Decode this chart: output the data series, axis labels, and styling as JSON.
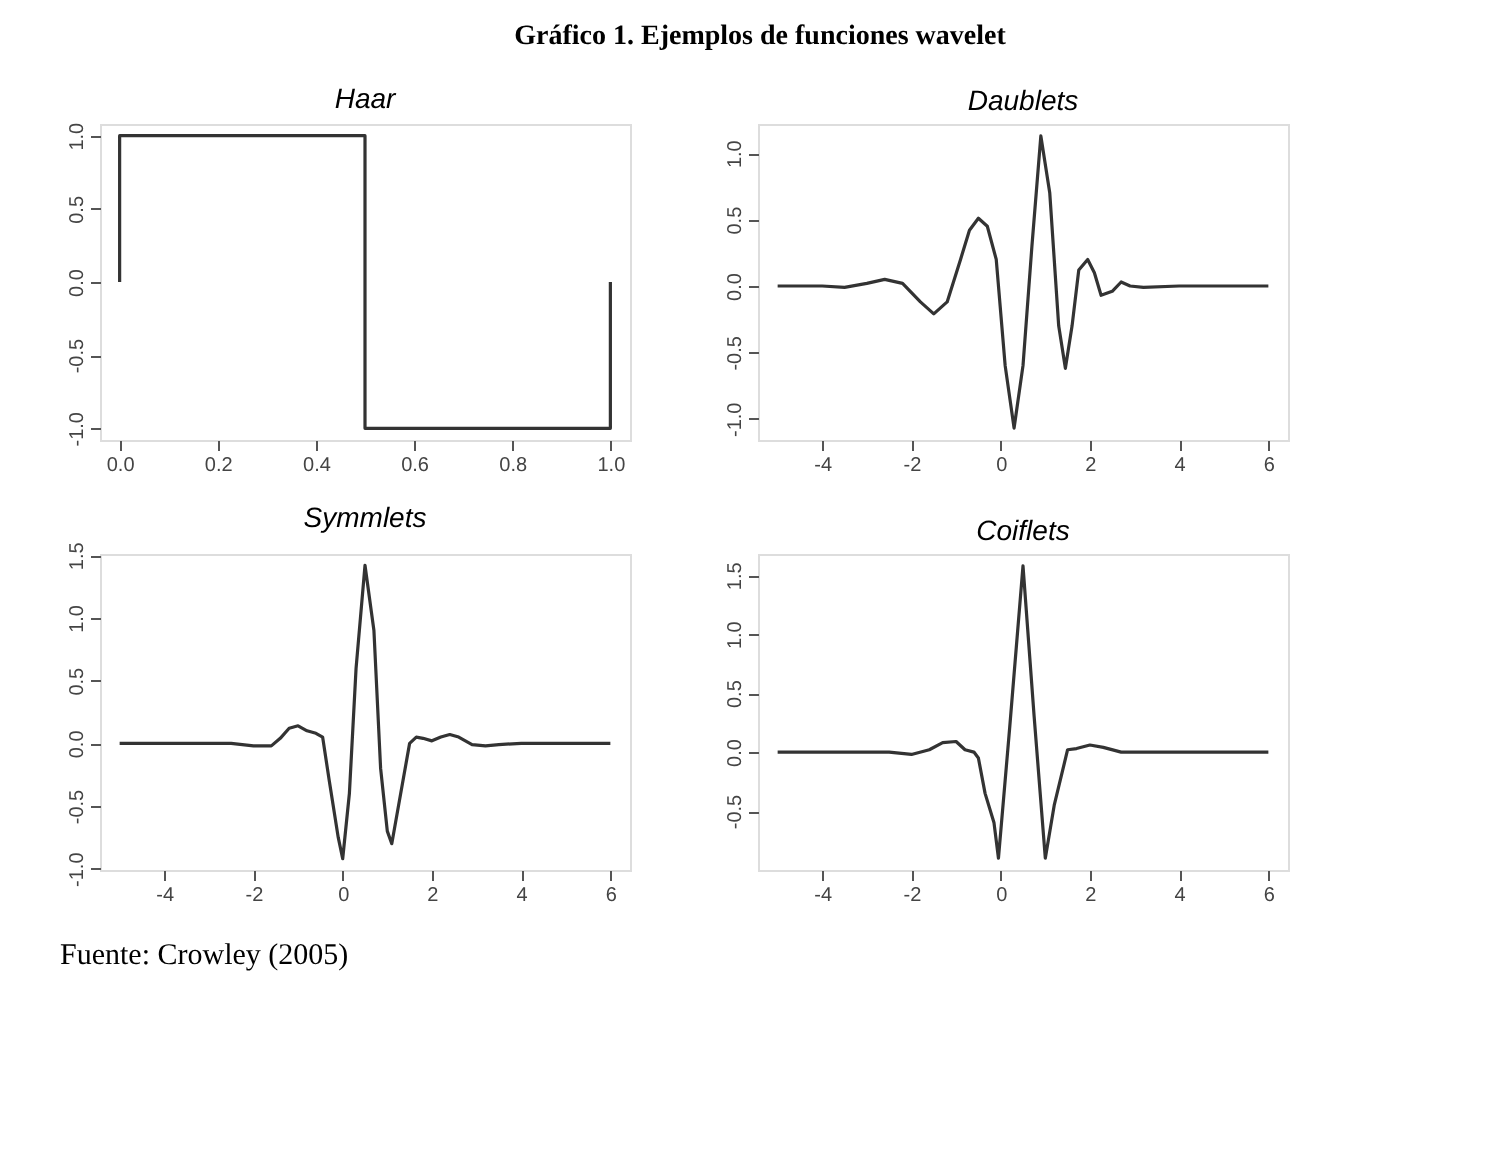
{
  "chart_data": [
    {
      "type": "other",
      "title": "Gráfico 1. Ejemplos de funciones wavelet"
    },
    {
      "type": "line",
      "title": "Haar",
      "x": [
        0,
        0,
        0.5,
        0.5,
        1,
        1
      ],
      "values": [
        0,
        1,
        1,
        -1,
        -1,
        0
      ],
      "color": "#333333",
      "xlim": [
        -0.04,
        1.04
      ],
      "ylim": [
        -1.08,
        1.08
      ],
      "xticks": [
        {
          "value": 0,
          "label": "0.0"
        },
        0.2,
        0.4,
        0.6,
        0.8,
        {
          "value": 1,
          "label": "1.0"
        }
      ],
      "yticks": [
        {
          "value": -1,
          "label": "-1.0"
        },
        -0.5,
        {
          "value": 0,
          "label": "0.0"
        },
        0.5,
        {
          "value": 1,
          "label": "1.0"
        }
      ],
      "grid": false
    },
    {
      "type": "line",
      "title": "Daublets",
      "x": [
        -5,
        -4,
        -3.5,
        -3,
        -2.6,
        -2.2,
        -1.8,
        -1.5,
        -1.2,
        -0.9,
        -0.7,
        -0.5,
        -0.3,
        -0.1,
        0.1,
        0.3,
        0.5,
        0.7,
        0.9,
        1.1,
        1.3,
        1.45,
        1.6,
        1.75,
        1.95,
        2.1,
        2.25,
        2.5,
        2.7,
        2.9,
        3.2,
        4,
        6
      ],
      "values": [
        0,
        0,
        -0.01,
        0.02,
        0.05,
        0.02,
        -0.12,
        -0.21,
        -0.12,
        0.2,
        0.42,
        0.51,
        0.45,
        0.2,
        -0.6,
        -1.07,
        -0.6,
        0.3,
        1.13,
        0.7,
        -0.3,
        -0.62,
        -0.3,
        0.12,
        0.2,
        0.1,
        -0.07,
        -0.04,
        0.03,
        0,
        -0.01,
        0,
        0
      ],
      "color": "#333333",
      "xlim": [
        -5.44,
        6.44
      ],
      "ylim": [
        -1.16,
        1.22
      ],
      "xticks": [
        -4,
        -2,
        0,
        2,
        4,
        6
      ],
      "yticks": [
        {
          "value": -1,
          "label": "-1.0"
        },
        -0.5,
        {
          "value": 0,
          "label": "0.0"
        },
        0.5,
        {
          "value": 1,
          "label": "1.0"
        }
      ],
      "grid": false
    },
    {
      "type": "line",
      "title": "Symmlets",
      "x": [
        -5,
        -3,
        -2.5,
        -2,
        -1.6,
        -1.4,
        -1.2,
        -1.0,
        -0.8,
        -0.6,
        -0.45,
        -0.3,
        -0.1,
        0,
        0.15,
        0.3,
        0.5,
        0.7,
        0.85,
        1.0,
        1.1,
        1.3,
        1.5,
        1.65,
        1.8,
        2.0,
        2.2,
        2.4,
        2.6,
        2.9,
        3.2,
        3.5,
        4,
        6
      ],
      "values": [
        0,
        0,
        0,
        -0.02,
        -0.02,
        0.04,
        0.12,
        0.14,
        0.1,
        0.08,
        0.05,
        -0.3,
        -0.75,
        -0.92,
        -0.4,
        0.6,
        1.42,
        0.9,
        -0.2,
        -0.7,
        -0.8,
        -0.4,
        0,
        0.05,
        0.04,
        0.02,
        0.05,
        0.07,
        0.05,
        -0.01,
        -0.02,
        -0.01,
        0,
        0
      ],
      "color": "#333333",
      "xlim": [
        -5.44,
        6.44
      ],
      "ylim": [
        -1.01,
        1.51
      ],
      "xticks": [
        -4,
        -2,
        0,
        2,
        4,
        6
      ],
      "yticks": [
        {
          "value": -1,
          "label": "-1.0"
        },
        -0.5,
        {
          "value": 0,
          "label": "0.0"
        },
        0.5,
        {
          "value": 1,
          "label": "1.0"
        },
        1.5
      ],
      "grid": false
    },
    {
      "type": "line",
      "title": "Coiflets",
      "x": [
        -5,
        -2.5,
        -2,
        -1.6,
        -1.3,
        -1.0,
        -0.8,
        -0.6,
        -0.5,
        -0.35,
        -0.15,
        -0.05,
        0.2,
        0.5,
        0.75,
        1.0,
        1.2,
        1.5,
        1.7,
        2.0,
        2.3,
        2.7,
        3.2,
        6
      ],
      "values": [
        0,
        0,
        -0.02,
        0.02,
        0.08,
        0.09,
        0.02,
        0,
        -0.05,
        -0.35,
        -0.6,
        -0.9,
        0.2,
        1.58,
        0.3,
        -0.9,
        -0.45,
        0.02,
        0.03,
        0.06,
        0.04,
        0,
        0,
        0
      ],
      "color": "#333333",
      "xlim": [
        -5.44,
        6.44
      ],
      "ylim": [
        -1.0,
        1.68
      ],
      "xticks": [
        -4,
        -2,
        0,
        2,
        4,
        6
      ],
      "yticks": [
        -0.5,
        {
          "value": 0,
          "label": "0.0"
        },
        0.5,
        {
          "value": 1,
          "label": "1.0"
        },
        1.5
      ],
      "grid": false
    },
    {
      "type": "other",
      "annotations": [
        "Fuente: Crowley (2005)"
      ]
    }
  ]
}
